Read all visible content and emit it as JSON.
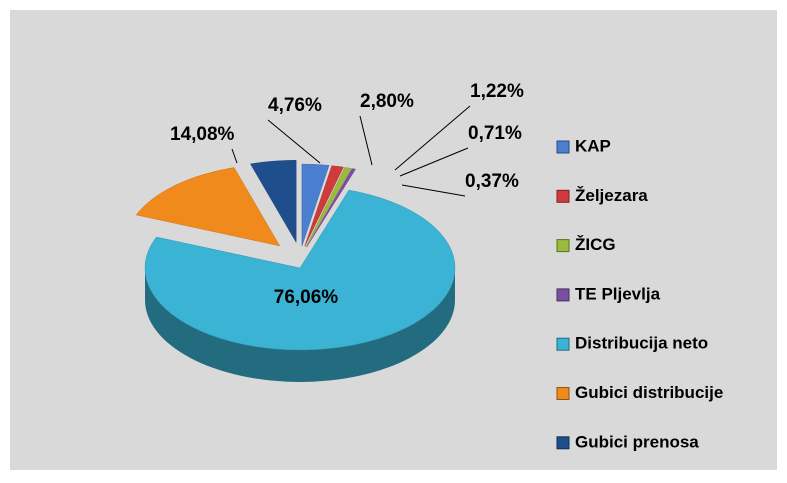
{
  "chart_data": {
    "type": "pie",
    "categories": [
      "KAP",
      "Željezara",
      "ŽICG",
      "TE Pljevlja",
      "Distribucija neto",
      "Gubici distribucije",
      "Gubici prenosa"
    ],
    "values": [
      2.8,
      1.22,
      0.71,
      0.37,
      76.06,
      14.08,
      4.76
    ],
    "value_labels": [
      "2,80%",
      "1,22%",
      "0,71%",
      "0,37%",
      "76,06%",
      "14,08%",
      "4,76%"
    ],
    "colors": [
      "#4a7fd0",
      "#d03a3a",
      "#9bbb3c",
      "#7a4fa0",
      "#3bb3d4",
      "#f08a1c",
      "#1f4e8c"
    ],
    "legend": "right"
  }
}
